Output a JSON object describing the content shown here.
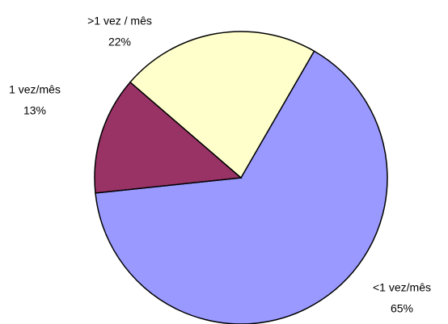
{
  "chart_data": {
    "type": "pie",
    "categories": [
      "<1 vez/mês",
      "1 vez/mês",
      ">1 vez / mês"
    ],
    "values": [
      65,
      13,
      22
    ],
    "value_labels": [
      "65%",
      "13%",
      "22%"
    ],
    "colors": [
      "#9999ff",
      "#993366",
      "#ffffcc"
    ]
  }
}
